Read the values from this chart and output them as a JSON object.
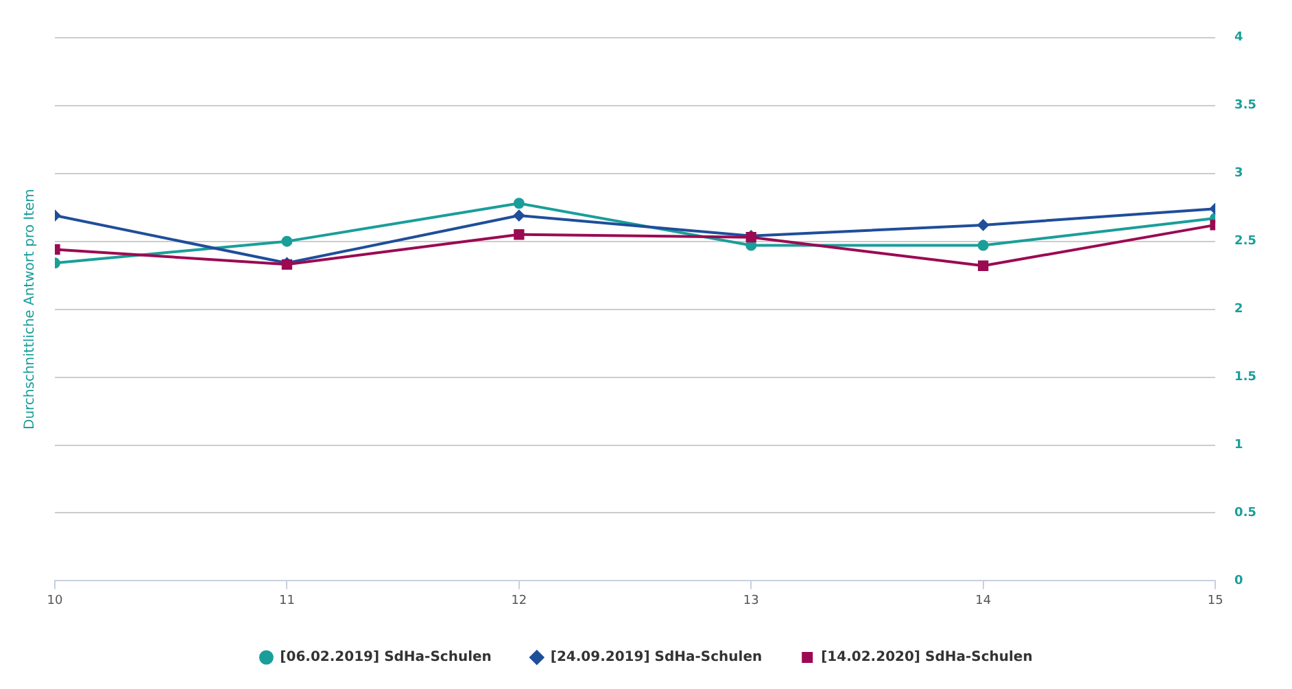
{
  "chart_data": {
    "type": "line",
    "ylabel": "Durchschnittliche Antwort pro Item",
    "x": [
      10,
      11,
      12,
      13,
      14,
      15
    ],
    "xlim": [
      10,
      15
    ],
    "xticks": [
      10,
      11,
      12,
      13,
      14,
      15
    ],
    "ylim": [
      0,
      4
    ],
    "yticks": [
      0,
      0.5,
      1,
      1.5,
      2,
      2.5,
      3,
      3.5,
      4
    ],
    "grid": "y",
    "legend": "bottom",
    "line_style": "solid",
    "series": [
      {
        "name": "[06.02.2019] SdHa-Schulen",
        "color": "#1a9e9a",
        "marker": "circle",
        "values": [
          2.34,
          2.5,
          2.78,
          2.47,
          2.47,
          2.67
        ]
      },
      {
        "name": "[24.09.2019] SdHa-Schulen",
        "color": "#1f4e9a",
        "marker": "diamond",
        "values": [
          2.69,
          2.34,
          2.69,
          2.54,
          2.62,
          2.74
        ]
      },
      {
        "name": "[14.02.2020] SdHa-Schulen",
        "color": "#9b0a52",
        "marker": "square",
        "values": [
          2.44,
          2.33,
          2.55,
          2.53,
          2.32,
          2.62
        ]
      }
    ]
  }
}
